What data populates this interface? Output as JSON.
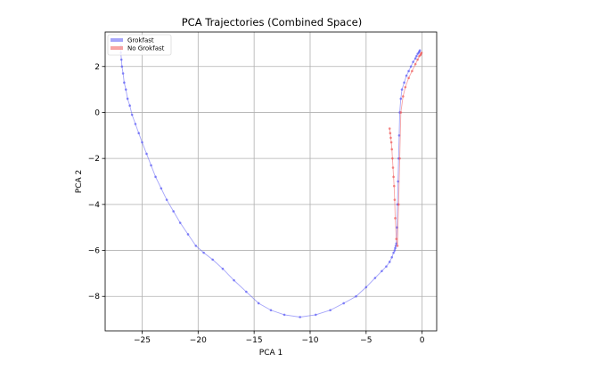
{
  "chart_data": {
    "type": "line",
    "title": "PCA Trajectories (Combined Space)",
    "xlabel": "PCA 1",
    "ylabel": "PCA 2",
    "xlim": [
      -28.3,
      1.3
    ],
    "ylim": [
      -9.5,
      3.5
    ],
    "xticks": [
      -25,
      -20,
      -15,
      -10,
      -5,
      0
    ],
    "yticks": [
      -8,
      -6,
      -4,
      -2,
      0,
      2
    ],
    "xtick_labels": [
      "−25",
      "−20",
      "−15",
      "−10",
      "−5",
      "0"
    ],
    "ytick_labels": [
      "−8",
      "−6",
      "−4",
      "−2",
      "0",
      "2"
    ],
    "grid": true,
    "legend": {
      "placement": "top-left"
    },
    "series": [
      {
        "name": "Grokfast",
        "color": "#5b5bf5",
        "x": [
          -26.9,
          -26.9,
          -26.85,
          -26.8,
          -26.7,
          -26.6,
          -26.45,
          -26.3,
          -26.1,
          -25.9,
          -25.6,
          -25.3,
          -25.0,
          -24.6,
          -24.2,
          -23.8,
          -23.3,
          -22.8,
          -22.2,
          -21.6,
          -20.9,
          -20.2,
          -19.5,
          -18.7,
          -17.8,
          -16.8,
          -15.7,
          -14.6,
          -13.5,
          -12.3,
          -10.9,
          -9.5,
          -8.2,
          -7.0,
          -5.9,
          -5.0,
          -4.2,
          -3.6,
          -3.2,
          -2.9,
          -2.7,
          -2.55,
          -2.45,
          -2.4,
          -2.35,
          -2.3,
          -2.25,
          -2.2,
          -2.15,
          -2.1,
          -2.05,
          -2.0,
          -1.9,
          -1.8,
          -1.6,
          -1.4,
          -1.2,
          -1.0,
          -0.8,
          -0.6,
          -0.5,
          -0.4,
          -0.3,
          -0.25,
          -0.2
        ],
        "y": [
          2.9,
          2.6,
          2.3,
          2.0,
          1.7,
          1.3,
          1.0,
          0.6,
          0.3,
          -0.1,
          -0.5,
          -0.9,
          -1.3,
          -1.8,
          -2.3,
          -2.8,
          -3.3,
          -3.8,
          -4.3,
          -4.8,
          -5.3,
          -5.8,
          -6.1,
          -6.4,
          -6.8,
          -7.3,
          -7.8,
          -8.3,
          -8.6,
          -8.8,
          -8.9,
          -8.8,
          -8.6,
          -8.3,
          -8.0,
          -7.6,
          -7.2,
          -6.9,
          -6.7,
          -6.5,
          -6.3,
          -6.1,
          -6.0,
          -5.9,
          -5.8,
          -5.7,
          -5.0,
          -4.0,
          -3.0,
          -2.0,
          -1.0,
          0.0,
          0.6,
          1.0,
          1.3,
          1.6,
          1.8,
          2.0,
          2.2,
          2.35,
          2.45,
          2.55,
          2.6,
          2.65,
          2.7
        ]
      },
      {
        "name": "No Grokfast",
        "color": "#f05a5a",
        "x": [
          -2.9,
          -2.85,
          -2.8,
          -2.75,
          -2.7,
          -2.65,
          -2.6,
          -2.55,
          -2.5,
          -2.45,
          -2.4,
          -2.3,
          -2.2,
          -2.1,
          -2.0,
          -1.9,
          -1.7,
          -1.5,
          -1.2,
          -0.9,
          -0.6,
          -0.4,
          -0.25,
          -0.15,
          -0.1,
          -0.05
        ],
        "y": [
          -0.7,
          -0.9,
          -1.1,
          -1.3,
          -1.6,
          -2.0,
          -2.4,
          -2.8,
          -3.2,
          -3.8,
          -4.6,
          -5.5,
          -5.8,
          -4.0,
          -2.0,
          0.0,
          0.7,
          1.1,
          1.5,
          1.8,
          2.1,
          2.3,
          2.45,
          2.5,
          2.55,
          2.6
        ]
      }
    ]
  }
}
